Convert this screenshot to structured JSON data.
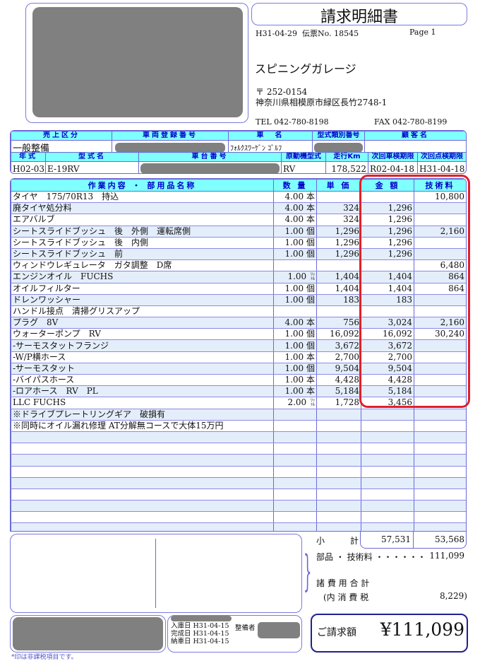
{
  "document": {
    "title": "請求明細書",
    "date": "H31-04-29",
    "slip_no_label": "伝票No.",
    "slip_no": "18545",
    "page": "Page 1"
  },
  "shop": {
    "name": "スピニングガレージ",
    "postal": "〒 252-0154",
    "address": "神奈川県相模原市緑区長竹2748-1",
    "tel": "TEL 042-780-8198",
    "fax": "FAX 042-780-8199"
  },
  "vehicle": {
    "headers1": [
      "売上区分",
      "車両登録番号",
      "車　名",
      "型式類別番号",
      "顧客名"
    ],
    "sales_category": "一般整備",
    "car_name": "ﾌｫﾙｸｽﾜｰｹﾞﾝ ｺﾞﾙﾌ",
    "headers2": [
      "年式",
      "型式名",
      "車台番号",
      "原動機型式",
      "走行Km",
      "次回車検期限",
      "次回点検期限"
    ],
    "year": "H02-03",
    "model": "E-19RV",
    "engine": "RV",
    "mileage": "178,522",
    "next_inspection": "R02-04-18",
    "next_check": "H31-04-18"
  },
  "items_table": {
    "headers": [
      "作業内容 ・ 部用品名称",
      "数 量",
      "単 価",
      "金 額",
      "技術料"
    ],
    "rows": [
      {
        "name": "タイヤ　175/70R13　持込",
        "qty": "4.00",
        "unit": "本",
        "price": "",
        "amount": "",
        "tech": "10,800"
      },
      {
        "name": "廃タイヤ処分料",
        "qty": "4.00",
        "unit": "本",
        "price": "324",
        "amount": "1,296",
        "tech": ""
      },
      {
        "name": "エアバルブ",
        "qty": "4.00",
        "unit": "本",
        "price": "324",
        "amount": "1,296",
        "tech": ""
      },
      {
        "name": "シートスライドブッシュ　後　外側　運転席側",
        "qty": "1.00",
        "unit": "個",
        "price": "1,296",
        "amount": "1,296",
        "tech": "2,160"
      },
      {
        "name": "シートスライドブッシュ　後　内側",
        "qty": "1.00",
        "unit": "個",
        "price": "1,296",
        "amount": "1,296",
        "tech": ""
      },
      {
        "name": "シートスライドブッシュ　前",
        "qty": "1.00",
        "unit": "個",
        "price": "1,296",
        "amount": "1,296",
        "tech": ""
      },
      {
        "name": "ウィンドウレギュレータ　ガタ調整　D席",
        "qty": "",
        "unit": "",
        "price": "",
        "amount": "",
        "tech": "6,480"
      },
      {
        "name": "エンジンオイル　FUCHS",
        "qty": "1.00",
        "unit": "ﾘｯﾄﾙ",
        "price": "1,404",
        "amount": "1,404",
        "tech": "864"
      },
      {
        "name": "オイルフィルター",
        "qty": "1.00",
        "unit": "個",
        "price": "1,404",
        "amount": "1,404",
        "tech": "864"
      },
      {
        "name": "ドレンワッシャー",
        "qty": "1.00",
        "unit": "個",
        "price": "183",
        "amount": "183",
        "tech": ""
      },
      {
        "name": "ハンドル接点　清掃グリスアップ",
        "qty": "",
        "unit": "",
        "price": "",
        "amount": "",
        "tech": ""
      },
      {
        "name": "プラグ　8V",
        "qty": "4.00",
        "unit": "本",
        "price": "756",
        "amount": "3,024",
        "tech": "2,160"
      },
      {
        "name": "ウォーターポンプ　RV",
        "qty": "1.00",
        "unit": "個",
        "price": "16,092",
        "amount": "16,092",
        "tech": "30,240"
      },
      {
        "name": "-サーモスタットフランジ",
        "qty": "1.00",
        "unit": "個",
        "price": "3,672",
        "amount": "3,672",
        "tech": ""
      },
      {
        "name": "-W/P横ホース",
        "qty": "1.00",
        "unit": "本",
        "price": "2,700",
        "amount": "2,700",
        "tech": ""
      },
      {
        "name": "-サーモスタット",
        "qty": "1.00",
        "unit": "個",
        "price": "9,504",
        "amount": "9,504",
        "tech": ""
      },
      {
        "name": "-バイパスホース",
        "qty": "1.00",
        "unit": "本",
        "price": "4,428",
        "amount": "4,428",
        "tech": ""
      },
      {
        "name": "-ロアホース　RV　PL",
        "qty": "1.00",
        "unit": "本",
        "price": "5,184",
        "amount": "5,184",
        "tech": ""
      },
      {
        "name": "LLC FUCHS",
        "qty": "2.00",
        "unit": "ﾘｯﾄﾙ",
        "price": "1,728",
        "amount": "3,456",
        "tech": ""
      },
      {
        "name": "※ドライブプレートリングギア　破損有",
        "qty": "",
        "unit": "",
        "price": "",
        "amount": "",
        "tech": ""
      },
      {
        "name": "※同時にオイル漏れ修理 AT分解無コースで大体15万円",
        "qty": "",
        "unit": "",
        "price": "",
        "amount": "",
        "tech": ""
      }
    ]
  },
  "totals": {
    "subtotal_label": "小　　　計",
    "subtotal_amount": "57,531",
    "subtotal_tech": "53,568",
    "parts_tech_label": "部品 ・ 技術料 ・・・・・・",
    "parts_tech_value": "111,099",
    "expenses_label": "諸 費 用 合 計",
    "tax_label": "(内 消 費 税",
    "tax_value": "8,229)",
    "invoice_label": "ご請求額",
    "invoice_value": "¥111,099"
  },
  "dates": {
    "in_label": "入庫日 H31-04-15",
    "mechanic_label": "整備者",
    "done_label": "完成日 H31-04-15",
    "delivery_label": "納車日 H31-04-15"
  },
  "footnote": "*印は非課税項目です。",
  "colors": {
    "header_bg": "#80ffff",
    "header_text": "#0000c8",
    "border": "#6a6ad8",
    "highlight": "#e0202a",
    "alt_row": "#e4eefa"
  }
}
